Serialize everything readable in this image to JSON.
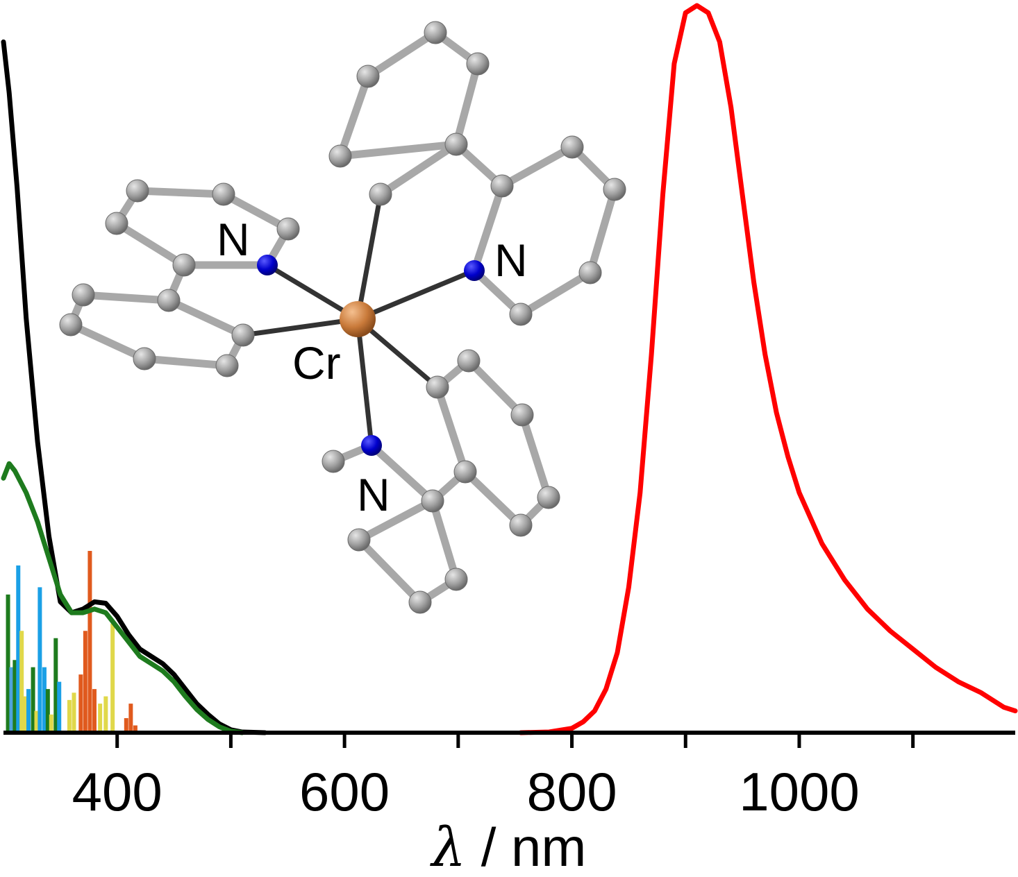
{
  "chart_data": {
    "type": "line",
    "xlabel_symbol": "λ",
    "xlabel_unit": " / nm",
    "xlim": [
      300,
      1190
    ],
    "ylim": [
      0,
      1
    ],
    "grid": false,
    "x_ticks_labeled": [
      400,
      600,
      800,
      1000
    ],
    "x_ticks_all": [
      400,
      500,
      600,
      700,
      800,
      900,
      1000,
      1100
    ],
    "series": [
      {
        "color": "#000000",
        "x": [
          300,
          305,
          312,
          320,
          330,
          340,
          350,
          360,
          370,
          380,
          390,
          400,
          410,
          420,
          430,
          440,
          450,
          460,
          470,
          480,
          490,
          500,
          510,
          530
        ],
        "y": [
          0.95,
          0.88,
          0.75,
          0.57,
          0.4,
          0.27,
          0.18,
          0.165,
          0.17,
          0.18,
          0.178,
          0.16,
          0.135,
          0.115,
          0.105,
          0.095,
          0.08,
          0.06,
          0.04,
          0.025,
          0.012,
          0.004,
          0.001,
          0
        ]
      },
      {
        "color": "#1e7b1e",
        "x": [
          300,
          305,
          310,
          320,
          330,
          340,
          350,
          360,
          370,
          380,
          390,
          400,
          410,
          420,
          430,
          440,
          450,
          460,
          470,
          480,
          490,
          500,
          510
        ],
        "y": [
          0.35,
          0.37,
          0.36,
          0.33,
          0.29,
          0.24,
          0.19,
          0.165,
          0.165,
          0.17,
          0.165,
          0.145,
          0.125,
          0.105,
          0.095,
          0.085,
          0.07,
          0.05,
          0.032,
          0.018,
          0.008,
          0.002,
          0
        ]
      },
      {
        "color": "#ff0000",
        "x": [
          755,
          780,
          800,
          810,
          820,
          830,
          840,
          850,
          860,
          870,
          880,
          890,
          900,
          910,
          920,
          930,
          940,
          950,
          960,
          970,
          980,
          990,
          1000,
          1020,
          1040,
          1060,
          1080,
          1100,
          1120,
          1140,
          1160,
          1180,
          1190
        ],
        "y": [
          0,
          0.001,
          0.006,
          0.015,
          0.03,
          0.06,
          0.11,
          0.2,
          0.33,
          0.52,
          0.74,
          0.92,
          0.99,
          1.0,
          0.99,
          0.95,
          0.86,
          0.74,
          0.62,
          0.52,
          0.44,
          0.38,
          0.33,
          0.26,
          0.21,
          0.17,
          0.14,
          0.115,
          0.09,
          0.07,
          0.055,
          0.035,
          0.03
        ]
      }
    ],
    "sticks": [
      {
        "x": 304,
        "y": 0.19,
        "color": "#1e7b1e"
      },
      {
        "x": 307,
        "y": 0.09,
        "color": "#4fa3dc"
      },
      {
        "x": 310,
        "y": 0.1,
        "color": "#1e7b1e"
      },
      {
        "x": 313,
        "y": 0.23,
        "color": "#1aa0e6"
      },
      {
        "x": 316,
        "y": 0.14,
        "color": "#e0d84a"
      },
      {
        "x": 319,
        "y": 0.05,
        "color": "#e0d84a"
      },
      {
        "x": 322,
        "y": 0.06,
        "color": "#1aa0e6"
      },
      {
        "x": 326,
        "y": 0.09,
        "color": "#1e7b1e"
      },
      {
        "x": 329,
        "y": 0.03,
        "color": "#e0d84a"
      },
      {
        "x": 332,
        "y": 0.2,
        "color": "#1aa0e6"
      },
      {
        "x": 336,
        "y": 0.09,
        "color": "#1aa0e6"
      },
      {
        "x": 339,
        "y": 0.06,
        "color": "#1e7b1e"
      },
      {
        "x": 342,
        "y": 0.025,
        "color": "#e0d84a"
      },
      {
        "x": 346,
        "y": 0.13,
        "color": "#1e7b1e"
      },
      {
        "x": 349,
        "y": 0.07,
        "color": "#1aa0e6"
      },
      {
        "x": 358,
        "y": 0.045,
        "color": "#e0d84a"
      },
      {
        "x": 362,
        "y": 0.055,
        "color": "#e0d84a"
      },
      {
        "x": 368,
        "y": 0.08,
        "color": "#e05a1e"
      },
      {
        "x": 372,
        "y": 0.14,
        "color": "#e05a1e"
      },
      {
        "x": 376,
        "y": 0.25,
        "color": "#e05a1e"
      },
      {
        "x": 380,
        "y": 0.06,
        "color": "#e05a1e"
      },
      {
        "x": 385,
        "y": 0.04,
        "color": "#e0d84a"
      },
      {
        "x": 390,
        "y": 0.05,
        "color": "#e0d84a"
      },
      {
        "x": 396,
        "y": 0.15,
        "color": "#e0d84a"
      },
      {
        "x": 408,
        "y": 0.02,
        "color": "#e05a1e"
      },
      {
        "x": 412,
        "y": 0.04,
        "color": "#e05a1e"
      },
      {
        "x": 416,
        "y": 0.01,
        "color": "#e05a1e"
      }
    ],
    "annotations": [
      "N",
      "N",
      "N",
      "Cr"
    ]
  },
  "structure": {
    "labels": {
      "n1": "N",
      "n2": "N",
      "n3": "N",
      "cr": "Cr"
    },
    "colors": {
      "carbon": "#9c9c9c",
      "nitrogen": "#0000cc",
      "chromium": "#c97a3a",
      "bond_metal": "#333333",
      "bond_ligand": "#a8a8a8"
    }
  }
}
